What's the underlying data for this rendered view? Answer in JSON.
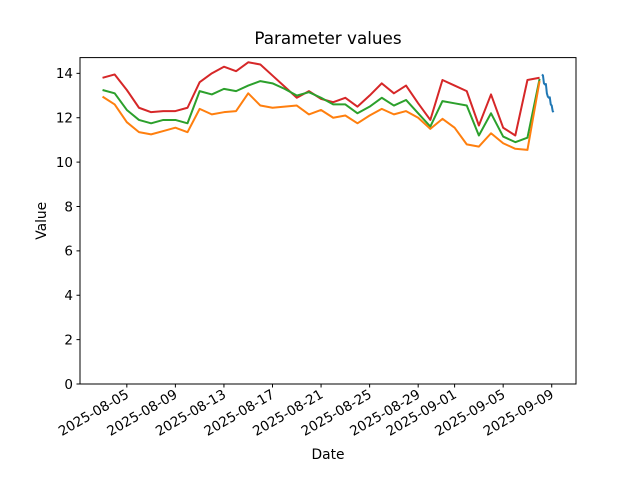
{
  "chart_data": {
    "type": "line",
    "title": "Parameter values",
    "xlabel": "Date",
    "ylabel": "Value",
    "grid": false,
    "legend": "none",
    "ylim": [
      0,
      14.71
    ],
    "xlim_days": [
      -1.857,
      39.0
    ],
    "y_ticks": [
      0,
      2,
      4,
      6,
      8,
      10,
      12,
      14
    ],
    "x_ticks": [
      {
        "day": 2,
        "label": "2025-08-05"
      },
      {
        "day": 6,
        "label": "2025-08-09"
      },
      {
        "day": 10,
        "label": "2025-08-13"
      },
      {
        "day": 14,
        "label": "2025-08-17"
      },
      {
        "day": 18,
        "label": "2025-08-21"
      },
      {
        "day": 22,
        "label": "2025-08-25"
      },
      {
        "day": 26,
        "label": "2025-08-29"
      },
      {
        "day": 29,
        "label": "2025-09-01"
      },
      {
        "day": 33,
        "label": "2025-09-05"
      },
      {
        "day": 37,
        "label": "2025-09-09"
      }
    ],
    "x_start_date": "2025-08-03",
    "series": [
      {
        "name": "red-series",
        "color": "#d62728",
        "x_days": [
          0,
          1,
          2,
          3,
          4,
          5,
          6,
          7,
          8,
          9,
          10,
          11,
          12,
          13,
          14,
          15,
          16,
          17,
          18,
          19,
          20,
          21,
          22,
          23,
          24,
          25,
          26,
          27,
          28,
          29,
          30,
          31,
          32,
          33,
          34,
          35,
          36
        ],
        "values": [
          13.8,
          13.95,
          13.25,
          12.45,
          12.25,
          12.3,
          12.3,
          12.45,
          13.6,
          14.0,
          14.3,
          14.1,
          14.5,
          14.4,
          13.9,
          13.4,
          12.9,
          13.2,
          12.85,
          12.7,
          12.9,
          12.5,
          13.0,
          13.55,
          13.1,
          13.45,
          12.65,
          11.9,
          13.7,
          13.45,
          13.2,
          11.65,
          13.05,
          11.55,
          11.2,
          13.7,
          13.8
        ]
      },
      {
        "name": "green-series",
        "color": "#2ca02c",
        "x_days": [
          0,
          1,
          2,
          3,
          4,
          5,
          6,
          7,
          8,
          9,
          10,
          11,
          12,
          13,
          14,
          15,
          16,
          17,
          18,
          19,
          20,
          21,
          22,
          23,
          24,
          25,
          26,
          27,
          28,
          29,
          30,
          31,
          32,
          33,
          34,
          35,
          36
        ],
        "values": [
          13.25,
          13.1,
          12.35,
          11.9,
          11.75,
          11.9,
          11.9,
          11.75,
          13.2,
          13.05,
          13.3,
          13.2,
          13.45,
          13.65,
          13.55,
          13.3,
          13.0,
          13.15,
          12.9,
          12.6,
          12.6,
          12.2,
          12.5,
          12.9,
          12.55,
          12.8,
          12.2,
          11.6,
          12.75,
          12.65,
          12.55,
          11.2,
          12.2,
          11.15,
          10.9,
          11.1,
          13.75
        ]
      },
      {
        "name": "orange-series",
        "color": "#ff7f0e",
        "x_days": [
          0,
          1,
          2,
          3,
          4,
          5,
          6,
          7,
          8,
          9,
          10,
          11,
          12,
          13,
          14,
          15,
          16,
          17,
          18,
          19,
          20,
          21,
          22,
          23,
          24,
          25,
          26,
          27,
          28,
          29,
          30,
          31,
          32,
          33,
          34,
          35,
          36
        ],
        "values": [
          12.95,
          12.6,
          11.8,
          11.35,
          11.25,
          11.4,
          11.55,
          11.35,
          12.4,
          12.15,
          12.25,
          12.3,
          13.1,
          12.55,
          12.45,
          12.5,
          12.55,
          12.15,
          12.35,
          12.0,
          12.1,
          11.75,
          12.1,
          12.4,
          12.15,
          12.3,
          12.0,
          11.5,
          11.95,
          11.55,
          10.8,
          10.7,
          11.3,
          10.85,
          10.6,
          10.55,
          13.65
        ]
      },
      {
        "name": "blue-series",
        "color": "#1f77b4",
        "x_days": [
          36.2,
          36.28,
          36.36,
          36.44,
          36.52,
          36.6,
          36.68,
          36.76,
          36.84,
          36.92,
          37.0,
          37.08,
          37.15
        ],
        "values": [
          13.95,
          13.9,
          13.55,
          13.5,
          13.52,
          13.1,
          12.95,
          12.9,
          12.92,
          12.6,
          12.55,
          12.3,
          12.25
        ]
      }
    ]
  }
}
